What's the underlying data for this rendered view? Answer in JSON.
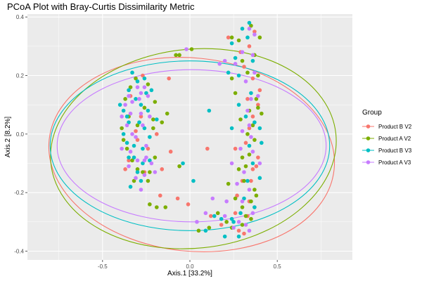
{
  "chart_data": {
    "type": "scatter",
    "title": "PCoA Plot with Bray-Curtis Dissimilarity Metric",
    "xlabel": "Axis.1   [33.2%]",
    "ylabel": "Axis.2   [8.2%]",
    "xlim": [
      -0.93,
      0.93
    ],
    "ylim": [
      -0.43,
      0.41
    ],
    "xticks": [
      -0.5,
      0.0,
      0.5
    ],
    "xtick_labels": [
      "-0.5",
      "0.0",
      "0.5"
    ],
    "yticks": [
      0.4,
      0.2,
      0.0,
      -0.2,
      -0.4
    ],
    "ytick_labels": [
      "0.4",
      "0.2",
      "0.0",
      "-0.2",
      "-0.4"
    ],
    "grid": true,
    "legend_title": "Group",
    "legend_position": "right",
    "series": [
      {
        "name": "Product B V2",
        "color": "#F8766D",
        "points": [
          [
            -0.37,
            -0.12
          ],
          [
            -0.26,
            -0.13
          ],
          [
            -0.16,
            -0.12
          ],
          [
            -0.11,
            -0.06
          ],
          [
            -0.19,
            0.0
          ],
          [
            0.1,
            -0.05
          ],
          [
            -0.17,
            -0.21
          ],
          [
            -0.01,
            -0.24
          ],
          [
            -0.07,
            -0.22
          ],
          [
            0.12,
            -0.28
          ],
          [
            0.18,
            -0.31
          ],
          [
            0.28,
            -0.33
          ],
          [
            0.26,
            -0.27
          ],
          [
            0.33,
            -0.28
          ],
          [
            0.37,
            -0.25
          ],
          [
            0.35,
            -0.16
          ],
          [
            0.38,
            -0.11
          ],
          [
            0.39,
            -0.08
          ],
          [
            0.32,
            -0.03
          ],
          [
            0.34,
            0.02
          ],
          [
            0.36,
            0.06
          ],
          [
            0.39,
            0.1
          ],
          [
            0.4,
            0.15
          ],
          [
            0.31,
            0.23
          ],
          [
            0.29,
            0.28
          ],
          [
            0.34,
            0.3
          ],
          [
            0.37,
            0.35
          ],
          [
            0.22,
            0.33
          ],
          [
            0.26,
            -0.05
          ],
          [
            0.3,
            -0.16
          ],
          [
            0.27,
            -0.21
          ],
          [
            0.34,
            -0.23
          ],
          [
            0.31,
            -0.34
          ],
          [
            0.36,
            -0.12
          ],
          [
            0.33,
            0.12
          ],
          [
            -0.34,
            0.13
          ],
          [
            -0.31,
            0.01
          ],
          [
            -0.35,
            -0.09
          ],
          [
            -0.28,
            0.06
          ],
          [
            -0.24,
            -0.05
          ],
          [
            -0.12,
            0.19
          ],
          [
            -0.27,
            0.2
          ],
          [
            -0.3,
            -0.02
          ],
          [
            0.36,
            0.19
          ]
        ]
      },
      {
        "name": "Product A V2",
        "color": "#7CAE00",
        "points": [
          [
            -0.08,
            0.27
          ],
          [
            0.01,
            0.29
          ],
          [
            -0.06,
            0.27
          ],
          [
            0.24,
            0.33
          ],
          [
            0.28,
            0.32
          ],
          [
            0.35,
            0.37
          ],
          [
            0.4,
            0.33
          ],
          [
            0.37,
            0.27
          ],
          [
            0.39,
            0.2
          ],
          [
            0.38,
            0.12
          ],
          [
            0.41,
            0.07
          ],
          [
            0.36,
            0.03
          ],
          [
            0.33,
            0.0
          ],
          [
            0.34,
            -0.07
          ],
          [
            0.32,
            -0.11
          ],
          [
            0.31,
            -0.16
          ],
          [
            0.37,
            -0.19
          ],
          [
            0.35,
            -0.23
          ],
          [
            0.32,
            -0.28
          ],
          [
            0.3,
            -0.31
          ],
          [
            0.24,
            -0.32
          ],
          [
            0.21,
            -0.3
          ],
          [
            0.16,
            -0.27
          ],
          [
            0.05,
            -0.33
          ],
          [
            0.11,
            -0.32
          ],
          [
            -0.19,
            -0.25
          ],
          [
            -0.23,
            -0.24
          ],
          [
            -0.14,
            -0.25
          ],
          [
            -0.2,
            -0.08
          ],
          [
            -0.23,
            -0.13
          ],
          [
            -0.3,
            -0.12
          ],
          [
            -0.33,
            -0.09
          ],
          [
            -0.36,
            -0.05
          ],
          [
            -0.39,
            0.02
          ],
          [
            -0.35,
            0.06
          ],
          [
            -0.37,
            0.12
          ],
          [
            -0.34,
            0.16
          ],
          [
            -0.31,
            0.19
          ],
          [
            -0.24,
            0.17
          ],
          [
            -0.2,
            0.11
          ],
          [
            -0.13,
            0.07
          ],
          [
            -0.16,
            0.04
          ],
          [
            -0.21,
            0.02
          ],
          [
            -0.3,
            0.03
          ],
          [
            -0.38,
            -0.02
          ],
          [
            -0.32,
            -0.16
          ],
          [
            -0.27,
            -0.13
          ],
          [
            -0.24,
            -0.16
          ],
          [
            0.29,
            0.05
          ],
          [
            0.26,
            0.14
          ],
          [
            0.24,
            0.19
          ],
          [
            0.3,
            0.25
          ],
          [
            0.33,
            0.21
          ],
          [
            0.34,
            0.08
          ],
          [
            0.37,
            -0.02
          ],
          [
            0.39,
            0.09
          ],
          [
            0.3,
            -0.08
          ],
          [
            0.28,
            -0.12
          ],
          [
            0.22,
            -0.17
          ],
          [
            0.26,
            -0.22
          ],
          [
            0.3,
            -0.25
          ],
          [
            0.35,
            -0.29
          ],
          [
            0.38,
            -0.21
          ],
          [
            -0.06,
            -0.11
          ],
          [
            -0.21,
            0.05
          ],
          [
            -0.26,
            0.09
          ]
        ]
      },
      {
        "name": "Product B V3",
        "color": "#00BFC4",
        "points": [
          [
            -0.38,
            0.08
          ],
          [
            -0.35,
            0.04
          ],
          [
            -0.36,
            -0.03
          ],
          [
            -0.32,
            -0.08
          ],
          [
            -0.3,
            -0.13
          ],
          [
            -0.34,
            -0.18
          ],
          [
            -0.27,
            -0.1
          ],
          [
            -0.26,
            0.02
          ],
          [
            -0.28,
            0.1
          ],
          [
            -0.25,
            0.14
          ],
          [
            -0.22,
            0.15
          ],
          [
            -0.26,
            0.19
          ],
          [
            -0.3,
            0.18
          ],
          [
            -0.33,
            0.21
          ],
          [
            -0.35,
            0.15
          ],
          [
            -0.4,
            0.1
          ],
          [
            -0.38,
            0.0
          ],
          [
            -0.35,
            -0.08
          ],
          [
            -0.29,
            0.04
          ],
          [
            -0.24,
            0.08
          ],
          [
            -0.19,
            0.05
          ],
          [
            -0.23,
            -0.01
          ],
          [
            -0.27,
            -0.05
          ],
          [
            -0.32,
            -0.04
          ],
          [
            -0.36,
            0.06
          ],
          [
            -0.31,
            0.12
          ],
          [
            -0.28,
            -0.16
          ],
          [
            -0.23,
            -0.09
          ],
          [
            -0.04,
            -0.1
          ],
          [
            0.02,
            -0.16
          ],
          [
            0.11,
            0.08
          ],
          [
            0.22,
            0.21
          ],
          [
            0.26,
            0.26
          ],
          [
            0.24,
            0.31
          ],
          [
            0.3,
            0.36
          ],
          [
            0.34,
            0.38
          ],
          [
            0.28,
            0.1
          ],
          [
            0.32,
            0.06
          ],
          [
            0.35,
            0.14
          ],
          [
            0.37,
            0.04
          ],
          [
            0.41,
            -0.03
          ],
          [
            0.36,
            -0.1
          ],
          [
            0.33,
            -0.16
          ],
          [
            0.37,
            -0.25
          ],
          [
            0.29,
            -0.27
          ],
          [
            0.24,
            -0.29
          ],
          [
            0.28,
            -0.35
          ],
          [
            0.18,
            -0.29
          ],
          [
            0.2,
            -0.35
          ],
          [
            0.14,
            -0.28
          ],
          [
            0.09,
            -0.33
          ],
          [
            0.25,
            -0.3
          ],
          [
            0.31,
            -0.22
          ],
          [
            0.4,
            -0.15
          ],
          [
            0.36,
            0.25
          ],
          [
            0.33,
            0.33
          ],
          [
            0.28,
            0.2
          ],
          [
            0.24,
            0.02
          ],
          [
            0.34,
            -0.04
          ],
          [
            0.4,
            0.02
          ]
        ]
      },
      {
        "name": "Product A V3",
        "color": "#C77CFF",
        "points": [
          [
            -0.37,
            0.1
          ],
          [
            -0.34,
            0.07
          ],
          [
            -0.36,
            0.03
          ],
          [
            -0.31,
            -0.01
          ],
          [
            -0.34,
            -0.06
          ],
          [
            -0.3,
            -0.09
          ],
          [
            -0.26,
            -0.14
          ],
          [
            -0.22,
            -0.1
          ],
          [
            -0.25,
            -0.04
          ],
          [
            -0.28,
            0.07
          ],
          [
            -0.24,
            0.13
          ],
          [
            -0.28,
            0.14
          ],
          [
            -0.3,
            0.16
          ],
          [
            -0.35,
            0.13
          ],
          [
            -0.39,
            0.06
          ],
          [
            -0.33,
            0.11
          ],
          [
            -0.27,
            0.03
          ],
          [
            -0.23,
            0.06
          ],
          [
            -0.25,
            -0.08
          ],
          [
            -0.2,
            -0.13
          ],
          [
            -0.35,
            -0.11
          ],
          [
            -0.39,
            -0.05
          ],
          [
            -0.31,
            -0.15
          ],
          [
            -0.28,
            -0.19
          ],
          [
            -0.26,
            -0.09
          ],
          [
            -0.33,
            0.0
          ],
          [
            -0.29,
            0.12
          ],
          [
            -0.26,
            0.16
          ],
          [
            -0.02,
            0.29
          ],
          [
            0.17,
            0.24
          ],
          [
            0.2,
            0.25
          ],
          [
            0.26,
            0.24
          ],
          [
            0.3,
            0.28
          ],
          [
            0.34,
            0.36
          ],
          [
            0.37,
            0.34
          ],
          [
            0.36,
            0.27
          ],
          [
            0.32,
            0.18
          ],
          [
            0.35,
            0.12
          ],
          [
            0.33,
            0.08
          ],
          [
            0.3,
            0.01
          ],
          [
            0.35,
            -0.01
          ],
          [
            0.36,
            -0.06
          ],
          [
            0.31,
            -0.13
          ],
          [
            0.34,
            -0.19
          ],
          [
            0.3,
            -0.23
          ],
          [
            0.36,
            -0.27
          ],
          [
            0.32,
            -0.31
          ],
          [
            0.28,
            -0.3
          ],
          [
            0.2,
            -0.28
          ],
          [
            0.13,
            -0.22
          ],
          [
            0.09,
            -0.27
          ],
          [
            0.04,
            -0.3
          ],
          [
            0.21,
            -0.23
          ],
          [
            0.27,
            -0.17
          ],
          [
            0.24,
            -0.1
          ],
          [
            0.29,
            -0.05
          ],
          [
            0.34,
            0.03
          ],
          [
            0.39,
            0.13
          ],
          [
            0.37,
            0.21
          ],
          [
            0.4,
            -0.1
          ],
          [
            0.34,
            -0.33
          ],
          [
            0.25,
            -0.32
          ]
        ]
      }
    ],
    "ellipses": [
      {
        "series": "Product B V2",
        "color": "#F8766D",
        "cx": 0.01,
        "cy": -0.07,
        "rx": 0.82,
        "ry": 0.33,
        "angle_deg": -6
      },
      {
        "series": "Product A V2",
        "color": "#7CAE00",
        "cx": 0.02,
        "cy": -0.05,
        "rx": 0.82,
        "ry": 0.34,
        "angle_deg": 6
      },
      {
        "series": "Product B V3",
        "color": "#00BFC4",
        "cx": 0.0,
        "cy": -0.04,
        "rx": 0.8,
        "ry": 0.29,
        "angle_deg": 0
      },
      {
        "series": "Product A V3",
        "color": "#C77CFF",
        "cx": 0.01,
        "cy": -0.04,
        "rx": 0.77,
        "ry": 0.26,
        "angle_deg": 0
      }
    ]
  }
}
